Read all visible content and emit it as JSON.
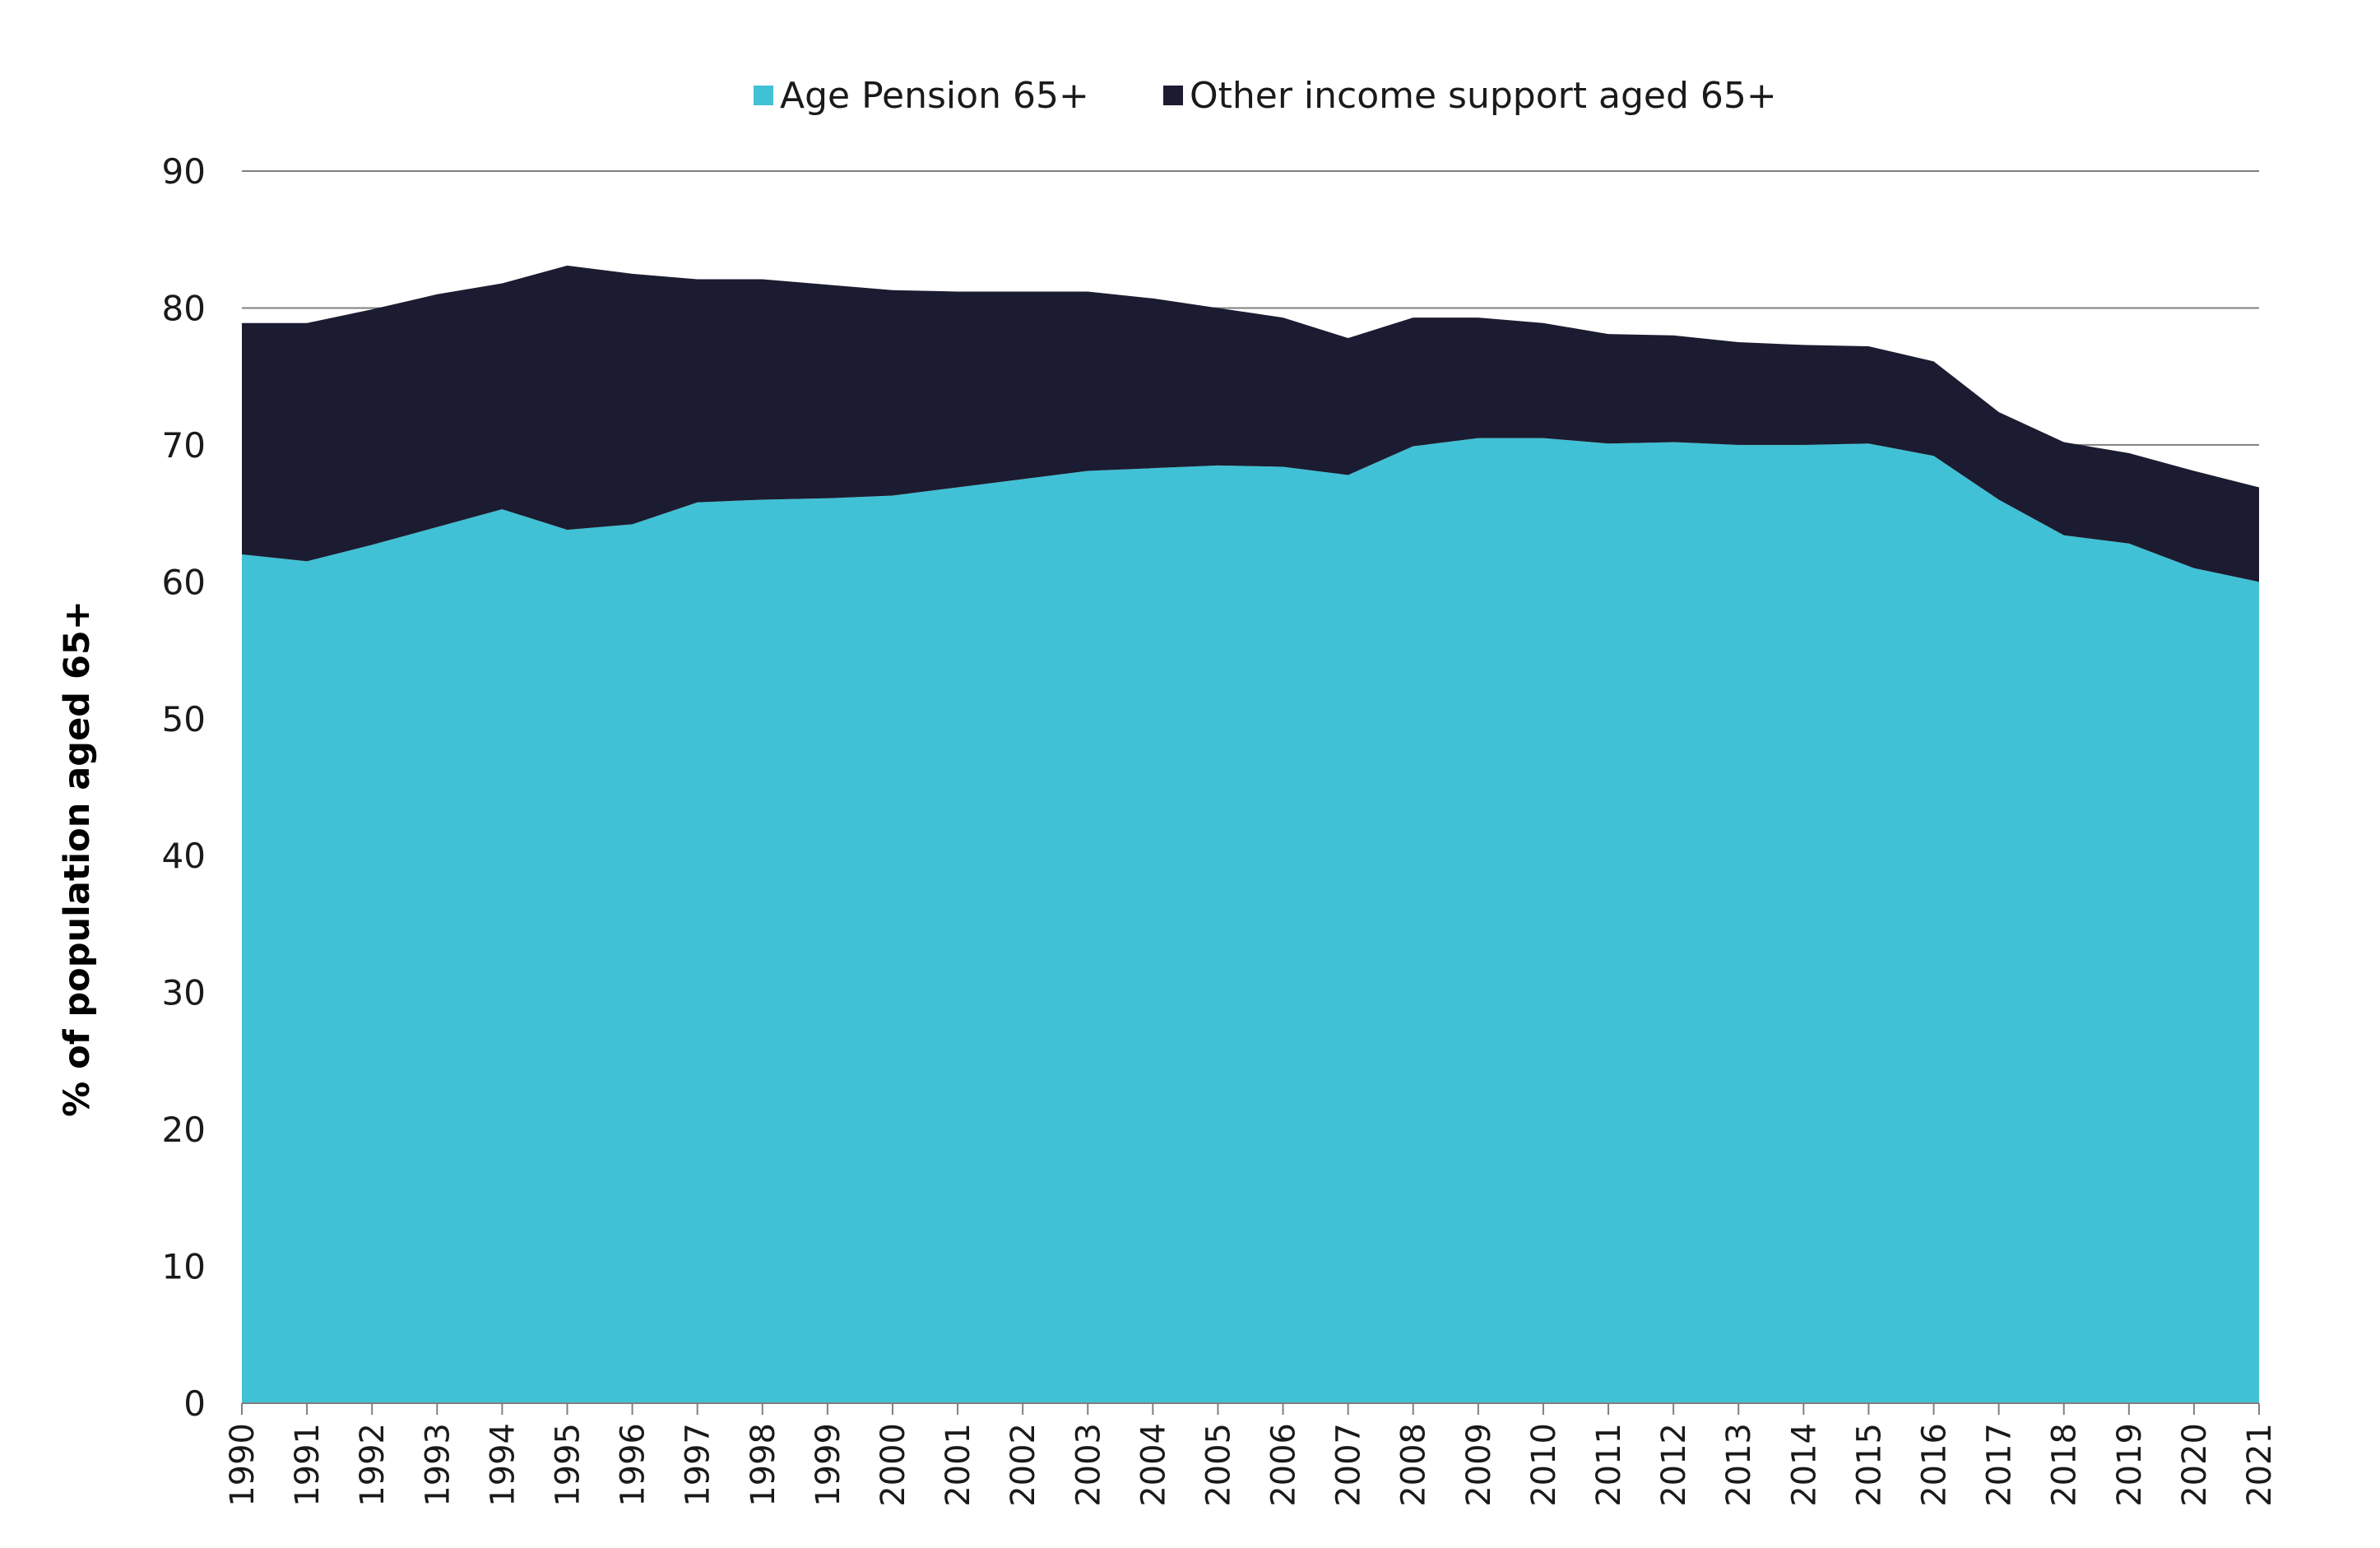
{
  "chart_data": {
    "type": "area",
    "stacked": true,
    "title": "",
    "xlabel": "",
    "ylabel": "% of population aged 65+",
    "ylim": [
      0,
      90
    ],
    "yticks": [
      0,
      10,
      20,
      30,
      40,
      50,
      60,
      70,
      80,
      90
    ],
    "grid": true,
    "legend_position": "top-center",
    "categories": [
      "1990",
      "1991",
      "1992",
      "1993",
      "1994",
      "1995",
      "1996",
      "1997",
      "1998",
      "1999",
      "2000",
      "2001",
      "2002",
      "2003",
      "2004",
      "2005",
      "2006",
      "2007",
      "2008",
      "2009",
      "2010",
      "2011",
      "2012",
      "2013",
      "2014",
      "2015",
      "2016",
      "2017",
      "2018",
      "2019",
      "2020",
      "2021"
    ],
    "series": [
      {
        "name": "Age Pension 65+",
        "color": "#41c1d5",
        "values": [
          62.0,
          61.5,
          62.7,
          64.0,
          65.3,
          63.8,
          64.2,
          65.8,
          66.0,
          66.1,
          66.3,
          66.9,
          67.5,
          68.1,
          68.3,
          68.5,
          68.4,
          67.8,
          69.9,
          70.5,
          70.5,
          70.1,
          70.2,
          70.0,
          70.0,
          70.1,
          69.2,
          66.0,
          63.4,
          62.8,
          61.0,
          60.0
        ]
      },
      {
        "name": "Other income support aged 65+",
        "color": "#1b1c31",
        "values": [
          16.9,
          17.4,
          17.2,
          17.0,
          16.5,
          19.3,
          18.3,
          16.3,
          16.1,
          15.6,
          15.0,
          14.3,
          13.7,
          13.1,
          12.4,
          11.5,
          10.9,
          10.0,
          9.4,
          8.8,
          8.4,
          8.0,
          7.8,
          7.5,
          7.3,
          7.1,
          6.9,
          6.4,
          6.8,
          6.6,
          7.1,
          6.9
        ]
      }
    ]
  }
}
